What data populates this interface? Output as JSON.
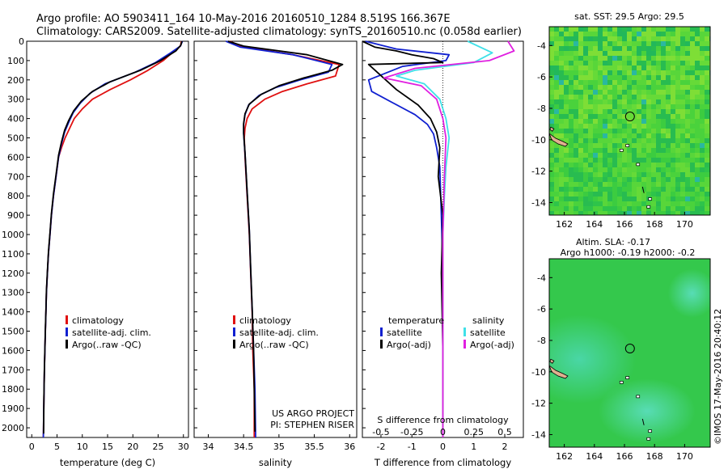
{
  "header": {
    "line1": "Argo profile: AO 5903411_164 10-May-2016 20160510_1284 8.519S 166.367E",
    "line2": "Climatology: CARS2009. Satellite-adjusted climatology: synTS_20160510.nc (0.058d earlier)"
  },
  "credit": "©IMOS 17-May-2016 20:40:12",
  "colors": {
    "climatology": "#e01010",
    "satellite": "#1020d0",
    "argo": "#000000",
    "sat_salinity": "#40e0e8",
    "argo_salinity": "#e020e0",
    "map_bg": "#2ec44a",
    "land": "#e0b090"
  },
  "chart_data": [
    {
      "type": "line",
      "id": "temperature-profile",
      "xlabel": "temperature (deg C)",
      "ylim": [
        2050,
        0
      ],
      "xlim": [
        -1,
        31
      ],
      "xticks": [
        0,
        5,
        10,
        15,
        20,
        25,
        30
      ],
      "yticks": [
        0,
        100,
        200,
        300,
        400,
        500,
        600,
        700,
        800,
        900,
        1000,
        1100,
        1200,
        1300,
        1400,
        1500,
        1600,
        1700,
        1800,
        1900,
        2000
      ],
      "legend": [
        "climatology",
        "satellite-adj. clim.",
        "Argo(..raw -QC)"
      ],
      "series": [
        {
          "name": "climatology",
          "color": "#e01010",
          "x": [
            29.6,
            29.4,
            28.2,
            26,
            23,
            19.5,
            15.5,
            12,
            10,
            8.4,
            7.5,
            6.6,
            5.9,
            5.3,
            4.8,
            4.3,
            3.9,
            3.6,
            3.3,
            3.1,
            2.9,
            2.8,
            2.7,
            2.6,
            2.5,
            2.4,
            2.3
          ],
          "y": [
            0,
            25,
            50,
            100,
            150,
            200,
            250,
            300,
            350,
            400,
            450,
            500,
            550,
            600,
            700,
            800,
            900,
            1000,
            1100,
            1200,
            1300,
            1400,
            1500,
            1600,
            1700,
            1850,
            2050
          ]
        },
        {
          "name": "satellite-adj. clim.",
          "color": "#1020d0",
          "x": [
            29.8,
            29.4,
            27.5,
            24.5,
            20.5,
            14.5,
            11.5,
            9.6,
            8.2,
            7.3,
            6.5,
            5.9,
            5.3,
            4.8,
            4.3,
            3.9,
            3.6,
            3.3,
            3.1,
            2.9,
            2.8,
            2.7,
            2.6,
            2.5,
            2.4,
            2.3
          ],
          "y": [
            0,
            25,
            60,
            110,
            160,
            220,
            270,
            320,
            370,
            420,
            470,
            530,
            600,
            700,
            800,
            900,
            1000,
            1100,
            1200,
            1300,
            1400,
            1500,
            1600,
            1700,
            1850,
            2050
          ]
        },
        {
          "name": "Argo(..raw -QC)",
          "color": "#000000",
          "x": [
            29.7,
            29.5,
            28.5,
            25.5,
            21.5,
            15.5,
            12,
            9.8,
            8.3,
            7.3,
            6.5,
            5.9,
            5.3,
            4.8,
            4.3,
            3.9,
            3.6,
            3.3,
            3.1,
            2.9,
            2.8,
            2.7,
            2.6,
            2.5,
            2.4,
            2.35
          ],
          "y": [
            0,
            20,
            50,
            100,
            150,
            210,
            260,
            310,
            360,
            410,
            460,
            520,
            590,
            690,
            790,
            890,
            990,
            1090,
            1190,
            1290,
            1390,
            1490,
            1590,
            1690,
            1840,
            2030
          ]
        }
      ]
    },
    {
      "type": "line",
      "id": "salinity-profile",
      "xlabel": "salinity",
      "ylim": [
        2050,
        0
      ],
      "xlim": [
        33.8,
        36.1
      ],
      "xticks": [
        34,
        34.5,
        35,
        35.5,
        36
      ],
      "legend": [
        "climatology",
        "satellite-adj. clim.",
        "Argo(..raw -QC)"
      ],
      "annotations": [
        "US ARGO PROJECT",
        "PI: STEPHEN RISER"
      ],
      "series": [
        {
          "name": "climatology",
          "color": "#e01010",
          "x": [
            34.3,
            34.5,
            35.2,
            35.85,
            35.8,
            35.4,
            35.05,
            34.8,
            34.62,
            34.55,
            34.52,
            34.51,
            34.52,
            34.55,
            34.58,
            34.6,
            34.62,
            34.63,
            34.65,
            34.65
          ],
          "y": [
            0,
            30,
            70,
            120,
            180,
            220,
            260,
            300,
            350,
            400,
            450,
            500,
            600,
            800,
            1000,
            1200,
            1400,
            1600,
            1800,
            2050
          ]
        },
        {
          "name": "satellite-adj. clim.",
          "color": "#1020d0",
          "x": [
            34.25,
            34.45,
            35.2,
            35.75,
            35.7,
            35.3,
            34.95,
            34.72,
            34.57,
            34.52,
            34.5,
            34.5,
            34.52,
            34.55,
            34.58,
            34.6,
            34.62,
            34.64,
            34.66,
            34.67
          ],
          "y": [
            0,
            30,
            70,
            120,
            160,
            200,
            240,
            280,
            330,
            380,
            430,
            480,
            580,
            780,
            980,
            1180,
            1380,
            1580,
            1800,
            2050
          ]
        },
        {
          "name": "Argo(..raw -QC)",
          "color": "#000000",
          "x": [
            34.28,
            34.5,
            35.4,
            35.9,
            35.75,
            35.35,
            35.0,
            34.75,
            34.58,
            34.52,
            34.5,
            34.5,
            34.52,
            34.55,
            34.58,
            34.6,
            34.62,
            34.64,
            34.65,
            34.66
          ],
          "y": [
            0,
            25,
            70,
            120,
            150,
            190,
            230,
            275,
            325,
            375,
            425,
            475,
            575,
            775,
            975,
            1175,
            1375,
            1575,
            1800,
            2020
          ]
        }
      ]
    },
    {
      "type": "line",
      "id": "difference-profile",
      "xlabel": "T difference from climatology",
      "x2label": "S difference from climatology",
      "ylim": [
        2050,
        0
      ],
      "xlim": [
        -2.6,
        2.6
      ],
      "xticks": [
        -2,
        -1,
        0,
        1,
        2
      ],
      "x2ticks_labels": [
        "-0.5",
        "-0.25",
        "0",
        "0.25",
        "0.5"
      ],
      "x2ticks_pos": [
        -2,
        -1,
        0,
        1,
        2
      ],
      "legend_temperature": [
        "temperature",
        "satellite",
        "Argo(-adj)"
      ],
      "legend_salinity": [
        "salinity",
        "satellite",
        "Argo(-adj)"
      ],
      "series": [
        {
          "name": "satellite",
          "color": "#1020d0",
          "x": [
            -2.5,
            -1.5,
            0.2,
            0.1,
            -1.3,
            -2.4,
            -2.3,
            -1.6,
            -0.9,
            -0.5,
            -0.3,
            -0.2,
            -0.1,
            -0.05,
            0,
            0,
            0
          ],
          "y": [
            0,
            40,
            70,
            100,
            130,
            200,
            260,
            320,
            380,
            430,
            480,
            550,
            650,
            900,
            1200,
            1600,
            2050
          ]
        },
        {
          "name": "Argo(-adj)",
          "color": "#000000",
          "x": [
            -2.6,
            -2.2,
            -1.5,
            -1,
            -0.3,
            0,
            -2.4,
            -1.5,
            -0.8,
            -0.4,
            -0.2,
            -0.1,
            -0.15,
            0,
            -0.05,
            0,
            0
          ],
          "y": [
            0,
            30,
            50,
            70,
            90,
            110,
            120,
            250,
            330,
            400,
            470,
            550,
            700,
            900,
            1200,
            1600,
            2050
          ]
        },
        {
          "name": "satellite",
          "color": "#40e0e8",
          "x": [
            0.8,
            1.6,
            1.0,
            -0.9,
            -1.5,
            -0.6,
            -0.1,
            0.1,
            0.2,
            0.1,
            0.05,
            0,
            0,
            0
          ],
          "y": [
            0,
            60,
            110,
            150,
            180,
            220,
            300,
            400,
            500,
            650,
            800,
            1000,
            1500,
            2050
          ]
        },
        {
          "name": "Argo(-adj)",
          "color": "#e020e0",
          "x": [
            2.1,
            2.3,
            1.5,
            -0.9,
            -1.9,
            -0.7,
            -0.2,
            0,
            0.1,
            0.05,
            0,
            0
          ],
          "y": [
            0,
            50,
            100,
            140,
            190,
            230,
            300,
            400,
            500,
            700,
            1000,
            2050
          ]
        }
      ]
    },
    {
      "type": "heatmap",
      "id": "sst-map",
      "title": "sat. SST: 29.5  Argo: 29.5",
      "xticks": [
        162,
        164,
        166,
        168,
        170
      ],
      "yticks": [
        -4,
        -6,
        -8,
        -10,
        -12,
        -14
      ],
      "xlim": [
        161,
        171.7
      ],
      "ylim": [
        -14.8,
        -2.8
      ],
      "argo_position": [
        166.367,
        -8.519
      ]
    },
    {
      "type": "heatmap",
      "id": "sla-map",
      "title": "Altim. SLA: -0.17",
      "subtitle": "Argo h1000: -0.19 h2000: -0.2",
      "xticks": [
        162,
        164,
        166,
        168,
        170
      ],
      "yticks": [
        -4,
        -6,
        -8,
        -10,
        -12,
        -14
      ],
      "xlim": [
        161,
        171.7
      ],
      "ylim": [
        -14.8,
        -2.8
      ],
      "argo_position": [
        166.367,
        -8.519
      ]
    }
  ]
}
